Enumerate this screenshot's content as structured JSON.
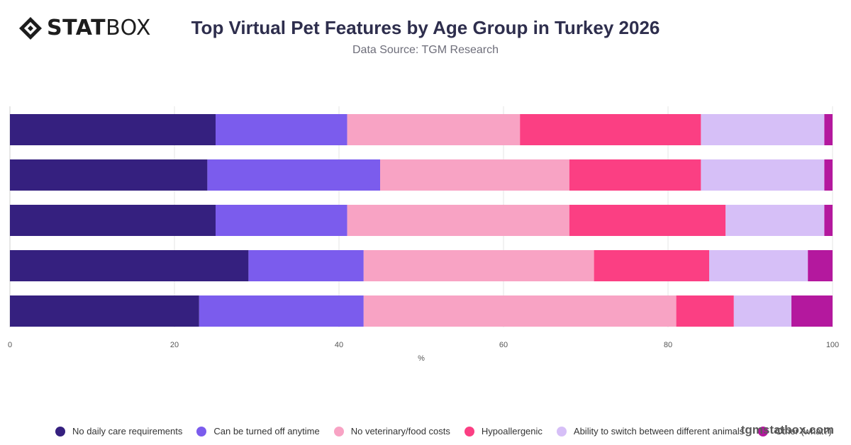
{
  "brand": {
    "logo_bold": "STAT",
    "logo_regular": "BOX"
  },
  "header": {
    "title": "Top Virtual Pet Features by Age Group in Turkey 2026",
    "subtitle": "Data Source: TGM Research"
  },
  "watermark": "tgmstatbox.com",
  "chart_data": {
    "type": "bar",
    "orientation": "horizontal",
    "stacked": true,
    "title": "Top Virtual Pet Features by Age Group in Turkey 2026",
    "subtitle": "Data Source: TGM Research",
    "xlabel": "%",
    "ylabel": "",
    "xlim": [
      0,
      100
    ],
    "xticks": [
      "0",
      "20",
      "40",
      "60",
      "80",
      "100"
    ],
    "categories": [
      "",
      "",
      "",
      "",
      ""
    ],
    "series": [
      {
        "name": "No daily care requirements",
        "color": "#35207f",
        "values": [
          25,
          24,
          25,
          29,
          23
        ]
      },
      {
        "name": "Can be turned off anytime",
        "color": "#7b5ced",
        "values": [
          16,
          21,
          16,
          14,
          20
        ]
      },
      {
        "name": "No veterinary/food costs",
        "color": "#f8a3c4",
        "values": [
          21,
          23,
          27,
          28,
          38
        ]
      },
      {
        "name": "Hypoallergenic",
        "color": "#fb3f83",
        "values": [
          22,
          16,
          19,
          14,
          7
        ]
      },
      {
        "name": "Ability to switch between different animals",
        "color": "#d6bff7",
        "values": [
          15,
          15,
          12,
          12,
          7
        ]
      },
      {
        "name": "Other (what?)",
        "color": "#b4189e",
        "values": [
          1,
          1,
          1,
          3,
          5
        ]
      }
    ],
    "grid": true,
    "legend_position": "bottom"
  }
}
